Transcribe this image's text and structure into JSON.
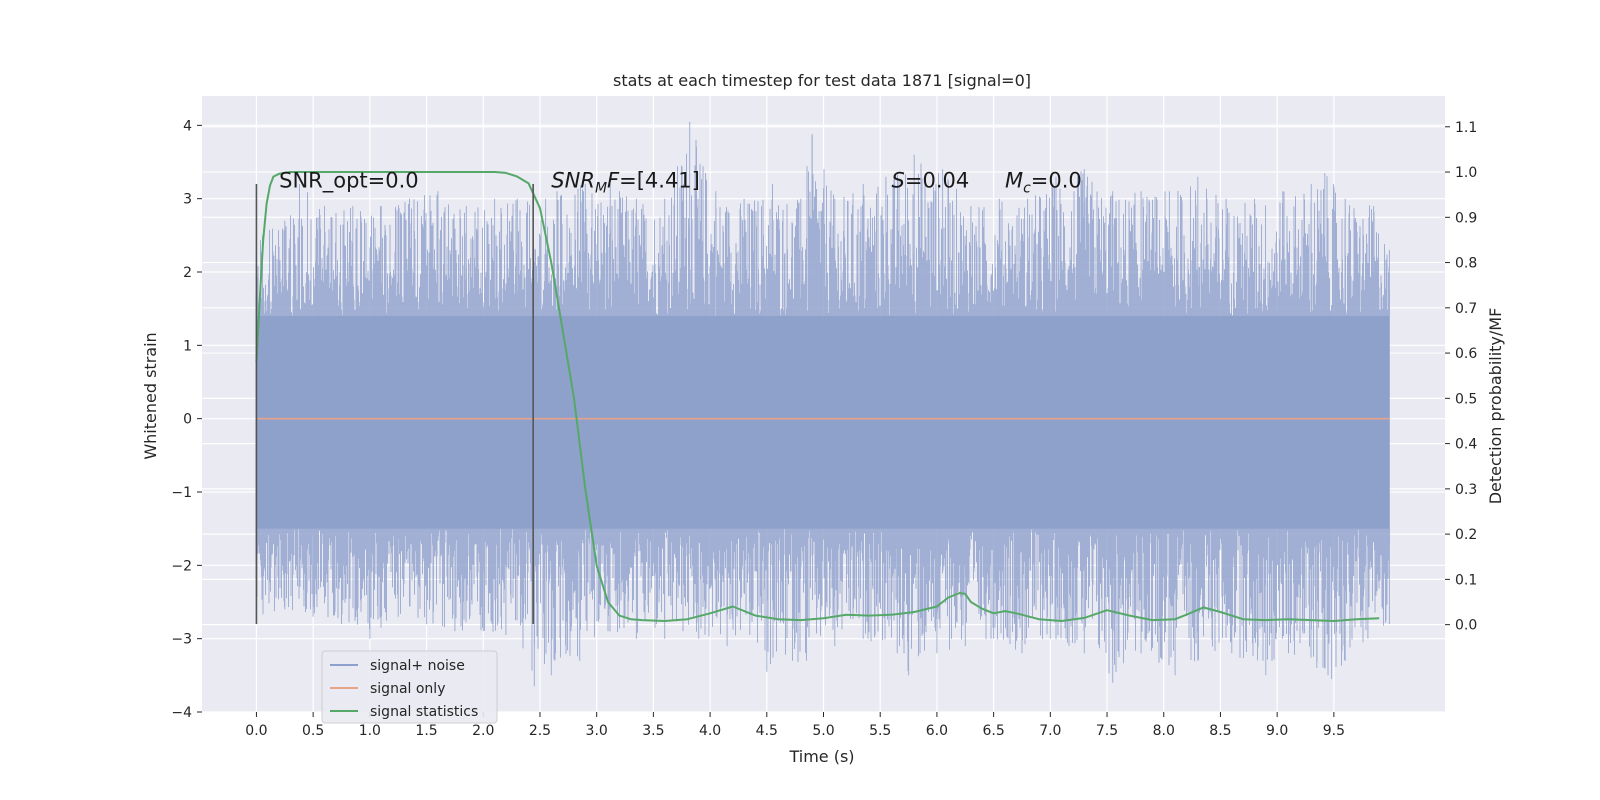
{
  "chart_data": {
    "type": "line",
    "title": "stats at each timestep for test data 1871 [signal=0]",
    "xlabel": "Time (s)",
    "ylabel": "Whitened strain",
    "y2label": "Detection probability/MF",
    "xlim": [
      -0.48,
      10.48
    ],
    "ylim": [
      -4.0,
      4.4
    ],
    "y2lim": [
      -0.193,
      1.168
    ],
    "xticks": [
      0.0,
      0.5,
      1.0,
      1.5,
      2.0,
      2.5,
      3.0,
      3.5,
      4.0,
      4.5,
      5.0,
      5.5,
      6.0,
      6.5,
      7.0,
      7.5,
      8.0,
      8.5,
      9.0,
      9.5
    ],
    "xtick_labels": [
      "0.0",
      "0.5",
      "1.0",
      "1.5",
      "2.0",
      "2.5",
      "3.0",
      "3.5",
      "4.0",
      "4.5",
      "5.0",
      "5.5",
      "6.0",
      "6.5",
      "7.0",
      "7.5",
      "8.0",
      "8.5",
      "9.0",
      "9.5"
    ],
    "yticks": [
      -4,
      -3,
      -2,
      -1,
      0,
      1,
      2,
      3,
      4
    ],
    "ytick_labels": [
      "−4",
      "−3",
      "−2",
      "−1",
      "0",
      "1",
      "2",
      "3",
      "4"
    ],
    "y2ticks": [
      0.0,
      0.1,
      0.2,
      0.3,
      0.4,
      0.5,
      0.6,
      0.7,
      0.8,
      0.9,
      1.0,
      1.1
    ],
    "y2tick_labels": [
      "0.0",
      "0.1",
      "0.2",
      "0.3",
      "0.4",
      "0.5",
      "0.6",
      "0.7",
      "0.8",
      "0.9",
      "1.0",
      "1.1"
    ],
    "grid": true,
    "legend_position": "lower-left",
    "series": [
      {
        "name": "signal+ noise",
        "color": "#8da0cb",
        "axis": "left",
        "kind": "noise",
        "x_range": [
          0.0,
          9.99
        ],
        "band": [
          -1.5,
          1.4
        ],
        "peak_max": [
          [
            0.0,
            2.5
          ],
          [
            0.25,
            2.7
          ],
          [
            0.38,
            3.2
          ],
          [
            0.6,
            2.9
          ],
          [
            0.85,
            2.9
          ],
          [
            1.1,
            2.9
          ],
          [
            1.35,
            3.0
          ],
          [
            1.6,
            3.1
          ],
          [
            1.85,
            2.9
          ],
          [
            2.1,
            3.0
          ],
          [
            2.3,
            3.0
          ],
          [
            2.55,
            3.0
          ],
          [
            2.65,
            3.1
          ],
          [
            2.9,
            3.2
          ],
          [
            3.12,
            3.2
          ],
          [
            3.35,
            3.0
          ],
          [
            3.6,
            3.0
          ],
          [
            3.82,
            4.05
          ],
          [
            4.05,
            3.1
          ],
          [
            4.3,
            3.0
          ],
          [
            4.55,
            3.2
          ],
          [
            4.8,
            3.0
          ],
          [
            4.9,
            3.88
          ],
          [
            5.1,
            3.0
          ],
          [
            5.35,
            3.2
          ],
          [
            5.55,
            3.3
          ],
          [
            5.8,
            3.6
          ],
          [
            6.05,
            3.4
          ],
          [
            6.3,
            2.9
          ],
          [
            6.55,
            3.0
          ],
          [
            6.8,
            3.0
          ],
          [
            7.05,
            3.3
          ],
          [
            7.3,
            3.4
          ],
          [
            7.55,
            3.1
          ],
          [
            7.8,
            3.1
          ],
          [
            8.05,
            3.1
          ],
          [
            8.3,
            3.3
          ],
          [
            8.55,
            3.0
          ],
          [
            8.8,
            3.0
          ],
          [
            9.05,
            3.1
          ],
          [
            9.3,
            3.2
          ],
          [
            9.42,
            3.35
          ],
          [
            9.6,
            3.0
          ],
          [
            9.85,
            2.9
          ],
          [
            9.99,
            2.3
          ]
        ],
        "peak_min": [
          [
            0.0,
            -2.8
          ],
          [
            0.25,
            -2.6
          ],
          [
            0.5,
            -2.7
          ],
          [
            0.75,
            -2.8
          ],
          [
            1.0,
            -3.0
          ],
          [
            1.25,
            -2.7
          ],
          [
            1.5,
            -2.8
          ],
          [
            1.75,
            -2.9
          ],
          [
            2.0,
            -2.9
          ],
          [
            2.2,
            -2.95
          ],
          [
            2.45,
            -3.65
          ],
          [
            2.6,
            -3.5
          ],
          [
            2.85,
            -3.3
          ],
          [
            3.1,
            -2.9
          ],
          [
            3.35,
            -3.0
          ],
          [
            3.6,
            -3.0
          ],
          [
            3.9,
            -3.0
          ],
          [
            4.15,
            -3.1
          ],
          [
            4.35,
            -2.95
          ],
          [
            4.5,
            -3.45
          ],
          [
            4.85,
            -3.3
          ],
          [
            5.1,
            -3.1
          ],
          [
            5.35,
            -3.0
          ],
          [
            5.65,
            -3.2
          ],
          [
            5.75,
            -3.5
          ],
          [
            6.0,
            -3.2
          ],
          [
            6.25,
            -3.1
          ],
          [
            6.5,
            -3.0
          ],
          [
            6.75,
            -3.2
          ],
          [
            7.0,
            -3.0
          ],
          [
            7.3,
            -3.2
          ],
          [
            7.55,
            -3.6
          ],
          [
            7.8,
            -3.2
          ],
          [
            8.1,
            -3.5
          ],
          [
            8.3,
            -3.3
          ],
          [
            8.6,
            -3.2
          ],
          [
            8.9,
            -3.5
          ],
          [
            9.1,
            -3.2
          ],
          [
            9.35,
            -3.4
          ],
          [
            9.48,
            -3.55
          ],
          [
            9.6,
            -3.3
          ],
          [
            9.8,
            -3.0
          ],
          [
            9.99,
            -2.8
          ]
        ]
      },
      {
        "name": "signal only",
        "color": "#e8a48a",
        "axis": "left",
        "x": [
          0.0,
          9.99
        ],
        "y": [
          0.0,
          0.0
        ]
      },
      {
        "name": "signal statistics",
        "color": "#55a868",
        "axis": "right",
        "x": [
          0.0,
          0.03,
          0.06,
          0.09,
          0.12,
          0.15,
          0.2,
          0.3,
          0.5,
          1.0,
          1.5,
          2.0,
          2.1,
          2.2,
          2.3,
          2.4,
          2.5,
          2.6,
          2.7,
          2.8,
          2.9,
          3.0,
          3.1,
          3.2,
          3.3,
          3.4,
          3.6,
          3.8,
          4.0,
          4.2,
          4.4,
          4.6,
          4.8,
          5.0,
          5.2,
          5.4,
          5.6,
          5.8,
          6.0,
          6.1,
          6.2,
          6.25,
          6.3,
          6.4,
          6.5,
          6.6,
          6.7,
          6.9,
          7.1,
          7.3,
          7.5,
          7.7,
          7.9,
          8.1,
          8.2,
          8.35,
          8.5,
          8.7,
          8.9,
          9.1,
          9.3,
          9.5,
          9.7,
          9.9
        ],
        "y": [
          0.58,
          0.72,
          0.85,
          0.93,
          0.97,
          0.99,
          0.996,
          1.0,
          1.0,
          1.0,
          1.0,
          1.0,
          1.0,
          0.998,
          0.99,
          0.975,
          0.92,
          0.8,
          0.65,
          0.5,
          0.3,
          0.13,
          0.05,
          0.02,
          0.012,
          0.01,
          0.008,
          0.012,
          0.025,
          0.04,
          0.02,
          0.012,
          0.01,
          0.014,
          0.022,
          0.02,
          0.022,
          0.028,
          0.04,
          0.06,
          0.07,
          0.068,
          0.05,
          0.035,
          0.025,
          0.03,
          0.025,
          0.012,
          0.008,
          0.015,
          0.032,
          0.02,
          0.01,
          0.012,
          0.022,
          0.038,
          0.028,
          0.012,
          0.01,
          0.012,
          0.01,
          0.008,
          0.012,
          0.014
        ]
      }
    ],
    "vlines": [
      {
        "x": 0.0,
        "ymin": -2.8,
        "ymax": 3.2,
        "color": "#555555"
      },
      {
        "x": 2.44,
        "ymin": -2.8,
        "ymax": 3.2,
        "color": "#555555"
      }
    ],
    "annotations": [
      {
        "parts": [
          {
            "t": "SNR_opt=0.0",
            "italic": false
          }
        ],
        "x": 0.2,
        "y": 3.15
      },
      {
        "parts": [
          {
            "t": "SNR",
            "italic": true
          },
          {
            "t": "M",
            "italic": true,
            "sub": true
          },
          {
            "t": "F",
            "italic": true
          },
          {
            "t": "=[4.41]",
            "italic": false
          }
        ],
        "x": 2.6,
        "y": 3.15
      },
      {
        "parts": [
          {
            "t": "S",
            "italic": true
          },
          {
            "t": "=0.04",
            "italic": false
          }
        ],
        "x": 5.6,
        "y": 3.15
      },
      {
        "parts": [
          {
            "t": "M",
            "italic": true
          },
          {
            "t": "c",
            "italic": true,
            "sub": true
          },
          {
            "t": "=0.0",
            "italic": false
          }
        ],
        "x": 6.6,
        "y": 3.15
      }
    ]
  }
}
